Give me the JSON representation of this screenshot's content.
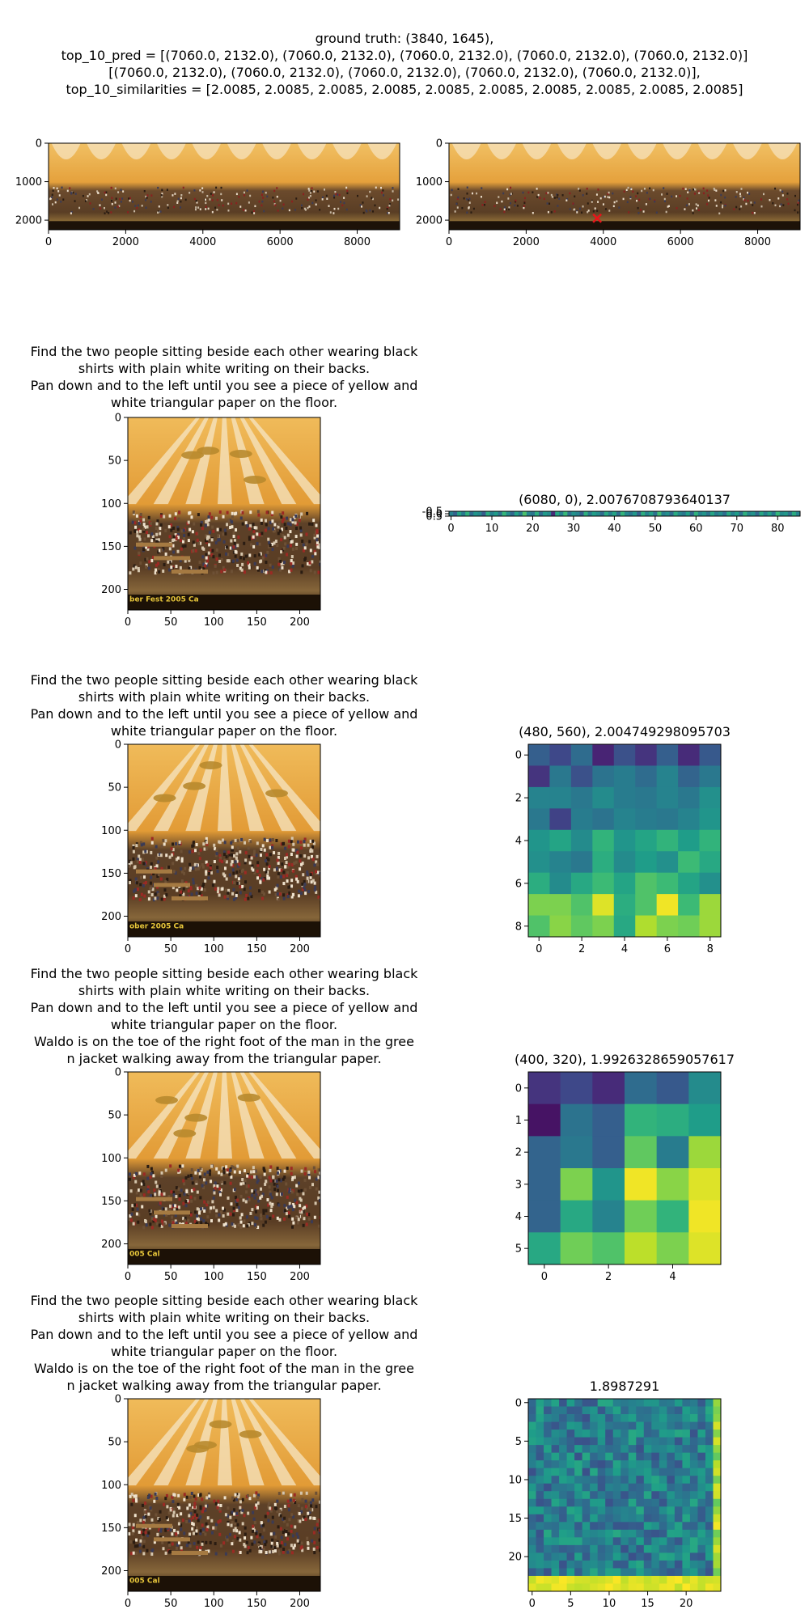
{
  "header": {
    "lines": [
      "ground truth: (3840, 1645),",
      "top_10_pred = [(7060.0, 2132.0), (7060.0, 2132.0), (7060.0, 2132.0), (7060.0, 2132.0), (7060.0, 2132.0)]",
      "[(7060.0, 2132.0), (7060.0, 2132.0), (7060.0, 2132.0), (7060.0, 2132.0), (7060.0, 2132.0)],",
      "top_10_similarities = [2.0085, 2.0085, 2.0085, 2.0085, 2.0085, 2.0085, 2.0085, 2.0085, 2.0085, 2.0085]"
    ]
  },
  "colors": {
    "tent_orange": "#e9a23b",
    "tent_stripe": "#f6e6c4",
    "crowd_dark": "#4a3322",
    "floor": "#7a5a2e",
    "marker": "#e8141a",
    "viridis": [
      "#440154",
      "#482878",
      "#3e4989",
      "#31688e",
      "#26828e",
      "#1f9e89",
      "#35b779",
      "#6ece58",
      "#b5de2b",
      "#fde725"
    ]
  },
  "chart_data": [
    {
      "type": "image",
      "xticks": [
        0,
        2000,
        4000,
        6000,
        8000
      ],
      "yticks": [
        0,
        1000,
        2000
      ],
      "xlim": [
        0,
        9100
      ],
      "ylim": [
        0,
        2250
      ]
    },
    {
      "type": "image",
      "xticks": [
        0,
        2000,
        4000,
        6000,
        8000
      ],
      "yticks": [
        0,
        1000,
        2000
      ],
      "xlim": [
        0,
        9100
      ],
      "ylim": [
        0,
        2250
      ],
      "marker": {
        "x": 3840,
        "y": 1950
      }
    },
    {
      "type": "image",
      "title_lines": [
        "Find the two people sitting beside each other wearing black",
        "shirts with plain white writing on their backs.",
        " Pan down and to the left until you see a piece of yellow and",
        "white triangular paper on the floor."
      ],
      "xticks": [
        0,
        50,
        100,
        150,
        200
      ],
      "yticks": [
        0,
        50,
        100,
        150,
        200
      ],
      "xlim": [
        0,
        224
      ],
      "ylim": [
        0,
        224
      ],
      "banner_text": "ber Fest 2005          Ca"
    },
    {
      "type": "heatmap",
      "title": "(6080, 0), 2.0076708793640137",
      "xticks": [
        0,
        10,
        20,
        30,
        40,
        50,
        60,
        70,
        80
      ],
      "yticks": [
        "-0.5",
        "0.0",
        "0.5"
      ],
      "xlim": [
        -0.5,
        85.5
      ],
      "ylim": [
        -0.5,
        0.5
      ],
      "rows": 1,
      "cols": 86,
      "values": [
        [
          0.45,
          0.32,
          0.58,
          0.41,
          0.63,
          0.35,
          0.52,
          0.47,
          0.29,
          0.61,
          0.44,
          0.55,
          0.38,
          0.66,
          0.49,
          0.33,
          0.57,
          0.42,
          0.71,
          0.46,
          0.39,
          0.62,
          0.35,
          0.54,
          0.48,
          0.12,
          0.59,
          0.43,
          0.67,
          0.37,
          0.51,
          0.45,
          0.3,
          0.63,
          0.41,
          0.56,
          0.49,
          0.34,
          0.6,
          0.44,
          0.58,
          0.36,
          0.65,
          0.47,
          0.4,
          0.53,
          0.31,
          0.62,
          0.45,
          0.57,
          0.38,
          0.69,
          0.43,
          0.5,
          0.35,
          0.61,
          0.47,
          0.4,
          0.56,
          0.33,
          0.64,
          0.45,
          0.52,
          0.39,
          0.58,
          0.42,
          0.49,
          0.36,
          0.6,
          0.44,
          0.55,
          0.37,
          0.63,
          0.46,
          0.51,
          0.34,
          0.59,
          0.43,
          0.57,
          0.4,
          0.66,
          0.48,
          0.53,
          0.38,
          0.61,
          0.45
        ]
      ]
    },
    {
      "type": "image",
      "title_lines": [
        "Find the two people sitting beside each other wearing black",
        "shirts with plain white writing on their backs.",
        " Pan down and to the left until you see a piece of yellow and",
        "white triangular paper on the floor."
      ],
      "xticks": [
        0,
        50,
        100,
        150,
        200
      ],
      "yticks": [
        0,
        50,
        100,
        150,
        200
      ],
      "xlim": [
        0,
        224
      ],
      "ylim": [
        0,
        224
      ],
      "banner_text": "ober 2005               Ca"
    },
    {
      "type": "heatmap",
      "title": "(480, 560), 2.004749298095703",
      "xticks": [
        0,
        2,
        4,
        6,
        8
      ],
      "yticks": [
        0,
        2,
        4,
        6,
        8
      ],
      "xlim": [
        -0.5,
        8.5
      ],
      "ylim": [
        -0.5,
        8.5
      ],
      "rows": 9,
      "cols": 9,
      "values": [
        [
          0.3,
          0.22,
          0.35,
          0.1,
          0.25,
          0.15,
          0.3,
          0.12,
          0.28
        ],
        [
          0.15,
          0.4,
          0.25,
          0.38,
          0.42,
          0.35,
          0.45,
          0.32,
          0.4
        ],
        [
          0.45,
          0.45,
          0.4,
          0.48,
          0.42,
          0.4,
          0.45,
          0.4,
          0.5
        ],
        [
          0.4,
          0.2,
          0.42,
          0.38,
          0.45,
          0.42,
          0.4,
          0.45,
          0.52
        ],
        [
          0.52,
          0.58,
          0.48,
          0.65,
          0.52,
          0.58,
          0.65,
          0.55,
          0.65
        ],
        [
          0.5,
          0.45,
          0.4,
          0.62,
          0.48,
          0.55,
          0.5,
          0.68,
          0.6
        ],
        [
          0.62,
          0.48,
          0.6,
          0.68,
          0.58,
          0.72,
          0.68,
          0.58,
          0.5
        ],
        [
          0.8,
          0.8,
          0.72,
          0.95,
          0.62,
          0.72,
          0.98,
          0.68,
          0.85
        ],
        [
          0.72,
          0.82,
          0.75,
          0.8,
          0.6,
          0.88,
          0.8,
          0.78,
          0.85
        ]
      ]
    },
    {
      "type": "image",
      "title_lines": [
        "Find the two people sitting beside each other wearing black",
        "shirts with plain white writing on their backs.",
        " Pan down and to the left until you see a piece of yellow and",
        "white triangular paper on the floor.",
        " Waldo is on the toe of the right foot of the man in the gree",
        "n jacket walking away from the triangular paper."
      ],
      "xticks": [
        0,
        50,
        100,
        150,
        200
      ],
      "yticks": [
        0,
        50,
        100,
        150,
        200
      ],
      "xlim": [
        0,
        224
      ],
      "ylim": [
        0,
        224
      ],
      "banner_text": "005                      Cal"
    },
    {
      "type": "heatmap",
      "title": "(400, 320), 1.9926328659057617",
      "xticks": [
        0,
        2,
        4
      ],
      "yticks": [
        0,
        1,
        2,
        3,
        4,
        5
      ],
      "xlim": [
        -0.5,
        5.5
      ],
      "ylim": [
        -0.5,
        5.5
      ],
      "rows": 6,
      "cols": 6,
      "values": [
        [
          0.15,
          0.22,
          0.12,
          0.35,
          0.28,
          0.48
        ],
        [
          0.05,
          0.38,
          0.3,
          0.65,
          0.62,
          0.55
        ],
        [
          0.32,
          0.4,
          0.3,
          0.75,
          0.42,
          0.85
        ],
        [
          0.32,
          0.8,
          0.52,
          0.98,
          0.82,
          0.95
        ],
        [
          0.32,
          0.6,
          0.45,
          0.78,
          0.65,
          0.98
        ],
        [
          0.6,
          0.78,
          0.72,
          0.9,
          0.8,
          0.95
        ]
      ]
    },
    {
      "type": "image",
      "title_lines": [
        "Find the two people sitting beside each other wearing black",
        "shirts with plain white writing on their backs.",
        " Pan down and to the left until you see a piece of yellow and",
        "white triangular paper on the floor.",
        " Waldo is on the toe of the right foot of the man in the gree",
        "n jacket walking away from the triangular paper."
      ],
      "xticks": [
        0,
        50,
        100,
        150,
        200
      ],
      "yticks": [
        0,
        50,
        100,
        150,
        200
      ],
      "xlim": [
        0,
        224
      ],
      "ylim": [
        0,
        224
      ],
      "banner_text": "005                      Cal"
    },
    {
      "type": "heatmap",
      "title": "1.8987291",
      "xticks": [
        0,
        5,
        10,
        15,
        20
      ],
      "yticks": [
        0,
        5,
        10,
        15,
        20
      ],
      "xlim": [
        -0.5,
        24.5
      ],
      "ylim": [
        -0.5,
        24.5
      ],
      "rows": 25,
      "cols": 25,
      "seed": 7
    }
  ]
}
